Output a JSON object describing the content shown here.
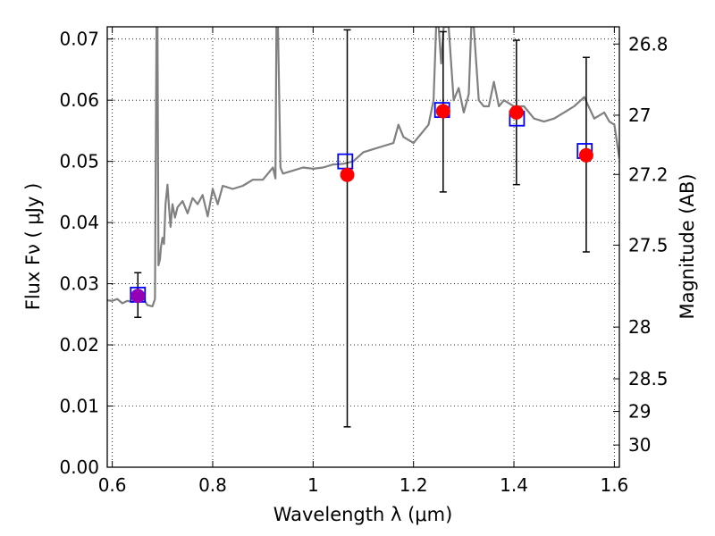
{
  "chart_data": {
    "type": "scatter",
    "title": "",
    "xlabel": "Wavelength  λ (μm)",
    "ylabel": "Flux  Fν  ( μJy )",
    "y2label": "Magnitude (AB)",
    "xlim": [
      0.59,
      1.61
    ],
    "ylim": [
      0.0,
      0.072
    ],
    "grid": true,
    "x_ticks": [
      0.6,
      0.8,
      1.0,
      1.2,
      1.4,
      1.6
    ],
    "x_tick_labels": [
      "0.6",
      "0.8",
      "1",
      "1.2",
      "1.4",
      "1.6"
    ],
    "y_ticks": [
      0.0,
      0.01,
      0.02,
      0.03,
      0.04,
      0.05,
      0.06,
      0.07
    ],
    "y_tick_labels": [
      "0.00",
      "0.01",
      "0.02",
      "0.03",
      "0.04",
      "0.05",
      "0.06",
      "0.07"
    ],
    "y2_ticks": [
      26.8,
      27.0,
      27.2,
      27.5,
      28.0,
      28.5,
      29.0,
      30.0
    ],
    "y2_tick_labels": [
      "26.8",
      "27",
      "27.2",
      "27.5",
      "28",
      "28.5",
      "29",
      "30"
    ],
    "colors": {
      "spectrum": "#808080",
      "observed": "#ff0000",
      "observed_first": "#9400b3",
      "model": "#0000ff",
      "errorbar": "#000000",
      "grid": "#000000"
    },
    "spectrum": {
      "name": "model spectrum",
      "x": [
        0.59,
        0.6,
        0.61,
        0.62,
        0.63,
        0.64,
        0.65,
        0.66,
        0.67,
        0.68,
        0.685,
        0.688,
        0.69,
        0.692,
        0.695,
        0.697,
        0.7,
        0.703,
        0.706,
        0.71,
        0.713,
        0.716,
        0.72,
        0.725,
        0.73,
        0.74,
        0.75,
        0.76,
        0.77,
        0.78,
        0.79,
        0.8,
        0.81,
        0.82,
        0.84,
        0.86,
        0.88,
        0.9,
        0.91,
        0.92,
        0.925,
        0.927,
        0.93,
        0.935,
        0.94,
        0.96,
        0.98,
        1.0,
        1.02,
        1.04,
        1.06,
        1.08,
        1.1,
        1.12,
        1.14,
        1.16,
        1.17,
        1.18,
        1.2,
        1.22,
        1.23,
        1.24,
        1.245,
        1.25,
        1.255,
        1.26,
        1.27,
        1.28,
        1.29,
        1.3,
        1.31,
        1.315,
        1.32,
        1.33,
        1.34,
        1.35,
        1.36,
        1.37,
        1.38,
        1.4,
        1.42,
        1.44,
        1.46,
        1.48,
        1.5,
        1.52,
        1.54,
        1.56,
        1.58,
        1.59,
        1.6,
        1.61
      ],
      "y": [
        0.0273,
        0.0272,
        0.0275,
        0.0268,
        0.0272,
        0.027,
        0.028,
        0.0278,
        0.0265,
        0.0263,
        0.0275,
        0.072,
        0.072,
        0.033,
        0.034,
        0.036,
        0.0375,
        0.0365,
        0.043,
        0.0462,
        0.0425,
        0.0393,
        0.043,
        0.0408,
        0.0425,
        0.0435,
        0.0415,
        0.044,
        0.043,
        0.0445,
        0.041,
        0.0455,
        0.043,
        0.046,
        0.0455,
        0.046,
        0.047,
        0.047,
        0.048,
        0.049,
        0.0472,
        0.072,
        0.072,
        0.049,
        0.048,
        0.0485,
        0.049,
        0.0488,
        0.049,
        0.0495,
        0.0496,
        0.05,
        0.0515,
        0.052,
        0.0525,
        0.053,
        0.056,
        0.054,
        0.053,
        0.055,
        0.056,
        0.06,
        0.072,
        0.072,
        0.066,
        0.072,
        0.072,
        0.06,
        0.062,
        0.058,
        0.061,
        0.072,
        0.072,
        0.06,
        0.059,
        0.059,
        0.063,
        0.059,
        0.06,
        0.059,
        0.059,
        0.057,
        0.0565,
        0.057,
        0.058,
        0.059,
        0.0605,
        0.057,
        0.058,
        0.0565,
        0.056,
        0.0505
      ]
    },
    "series": [
      {
        "name": "observed",
        "x": [
          0.651,
          1.068,
          1.259,
          1.405,
          1.544
        ],
        "y": [
          0.028,
          0.0478,
          0.0582,
          0.058,
          0.051
        ],
        "yerr_low": [
          0.0245,
          0.0066,
          0.045,
          0.0462,
          0.0352
        ],
        "yerr_high": [
          0.0318,
          0.0715,
          0.0712,
          0.0698,
          0.067
        ]
      },
      {
        "name": "model",
        "x": [
          0.651,
          1.064,
          1.257,
          1.406,
          1.541
        ],
        "y": [
          0.0282,
          0.05,
          0.0584,
          0.057,
          0.0517
        ]
      }
    ]
  }
}
